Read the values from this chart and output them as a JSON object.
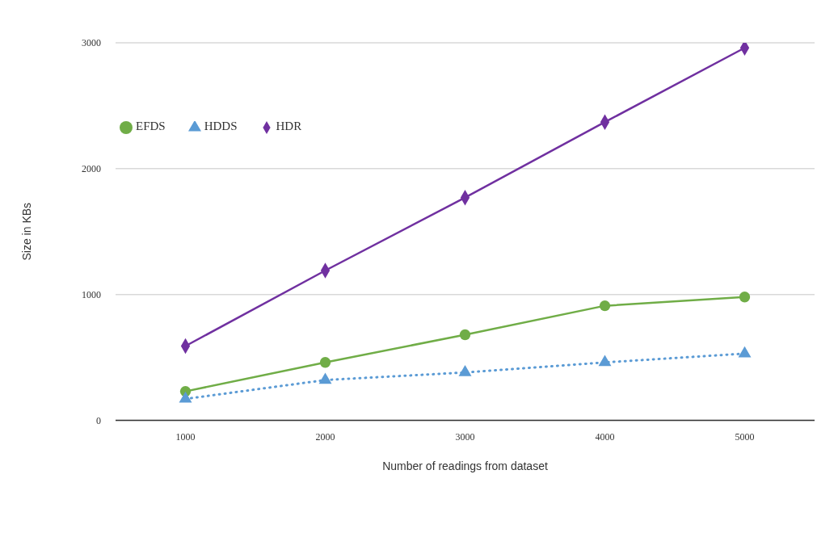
{
  "chart_data": {
    "type": "line",
    "xlabel": "Number of readings from dataset",
    "ylabel": "Size in KBs",
    "categories": [
      "1000",
      "2000",
      "3000",
      "4000",
      "5000"
    ],
    "ylim": [
      0,
      3000
    ],
    "yticks": [
      0,
      1000,
      2000,
      3000
    ],
    "grid": "y",
    "legend": "top left",
    "series": [
      {
        "name": "HDR",
        "color": "#7030a0",
        "values": [
          590,
          1190,
          1770,
          2370,
          2960
        ],
        "marker": "diamond",
        "line_style": "solid"
      },
      {
        "name": "EFDS",
        "color": "#70ad47",
        "values": [
          230,
          460,
          680,
          910,
          980
        ],
        "marker": "circle",
        "line_style": "solid"
      },
      {
        "name": "HDDS",
        "color": "#5b9bd5",
        "values": [
          170,
          320,
          380,
          460,
          530
        ],
        "marker": "triangle",
        "line_style": "dotted"
      }
    ]
  }
}
